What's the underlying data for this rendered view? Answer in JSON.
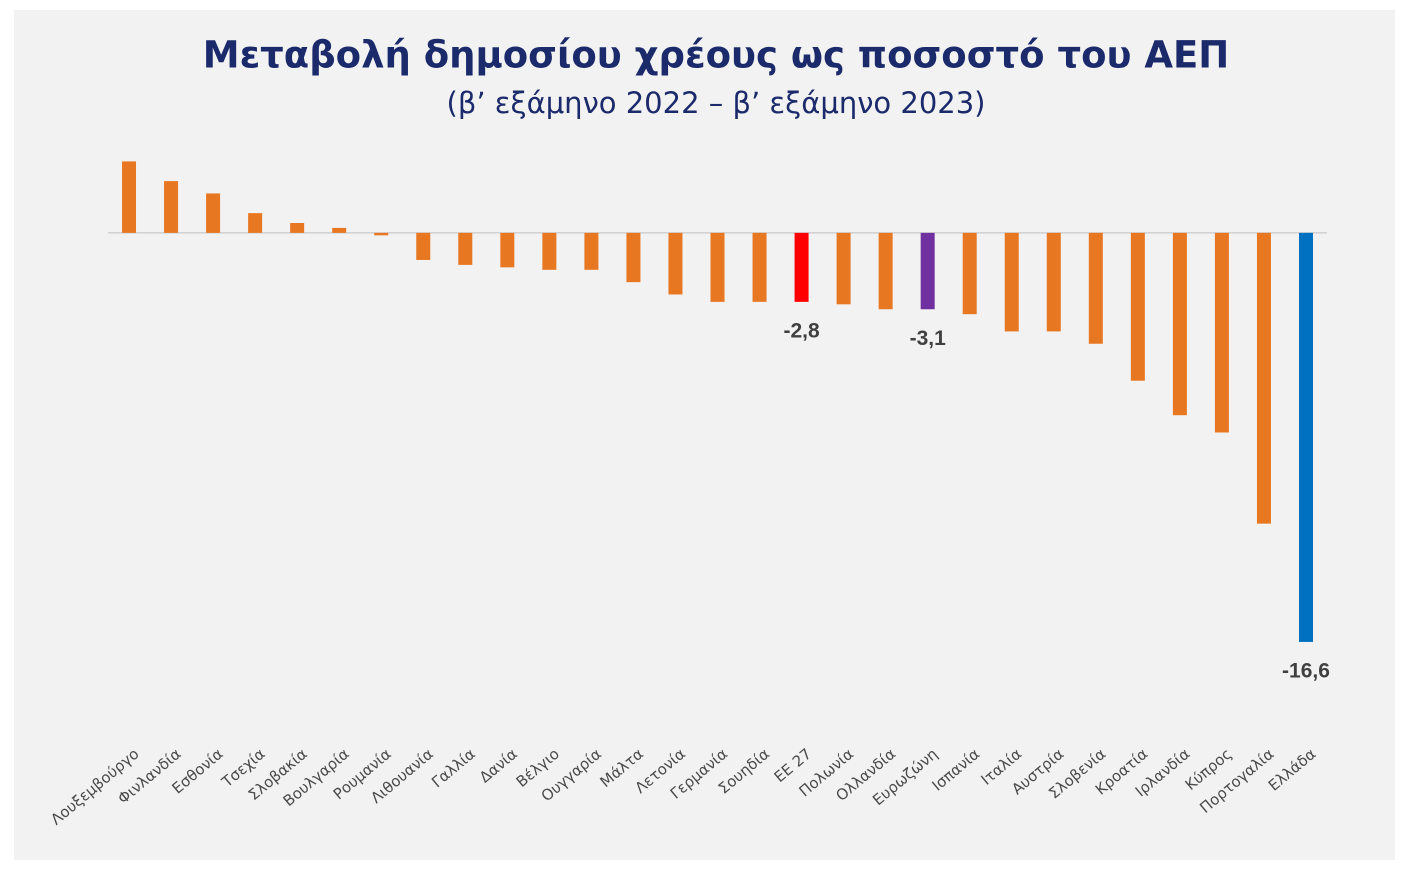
{
  "chart_data": {
    "type": "bar",
    "title": "Μεταβολή δημοσίου χρέους ως ποσοστό του ΑΕΠ",
    "subtitle": "(β’ εξάμηνο 2022 – β’ εξάμηνο 2023)",
    "categories": [
      "Λουξεμβούργο",
      "Φινλανδία",
      "Εσθονία",
      "Τσεχία",
      "Σλοβακία",
      "Βουλγαρία",
      "Ρουμανία",
      "Λιθουανία",
      "Γαλλία",
      "Δανία",
      "Βέλγιο",
      "Ουγγαρία",
      "Μάλτα",
      "Λετονία",
      "Γερμανία",
      "Σουηδία",
      "ΕΕ 27",
      "Πολωνία",
      "Ολλανδία",
      "Ευρωζώνη",
      "Ισπανία",
      "Ιταλία",
      "Αυστρία",
      "Σλοβενία",
      "Κροατία",
      "Ιρλανδία",
      "Κύπρος",
      "Πορτογαλία",
      "Ελλάδα"
    ],
    "values": [
      2.9,
      2.1,
      1.6,
      0.8,
      0.4,
      0.2,
      -0.1,
      -1.1,
      -1.3,
      -1.4,
      -1.5,
      -1.5,
      -2.0,
      -2.5,
      -2.8,
      -2.8,
      -2.8,
      -2.9,
      -3.1,
      -3.1,
      -3.3,
      -4.0,
      -4.0,
      -4.5,
      -6.0,
      -7.4,
      -8.1,
      -11.8,
      -16.6
    ],
    "value_labels": [
      null,
      null,
      null,
      null,
      null,
      null,
      null,
      null,
      null,
      null,
      null,
      null,
      null,
      null,
      null,
      null,
      "-2,8",
      null,
      null,
      "-3,1",
      null,
      null,
      null,
      null,
      null,
      null,
      null,
      null,
      "-16,6"
    ],
    "colors": [
      "#e87722",
      "#e87722",
      "#e87722",
      "#e87722",
      "#e87722",
      "#e87722",
      "#e87722",
      "#e87722",
      "#e87722",
      "#e87722",
      "#e87722",
      "#e87722",
      "#e87722",
      "#e87722",
      "#e87722",
      "#e87722",
      "#ff0000",
      "#e87722",
      "#e87722",
      "#7030a0",
      "#e87722",
      "#e87722",
      "#e87722",
      "#e87722",
      "#e87722",
      "#e87722",
      "#e87722",
      "#e87722",
      "#0070c0"
    ],
    "ylim": [
      -20,
      3.2
    ]
  }
}
